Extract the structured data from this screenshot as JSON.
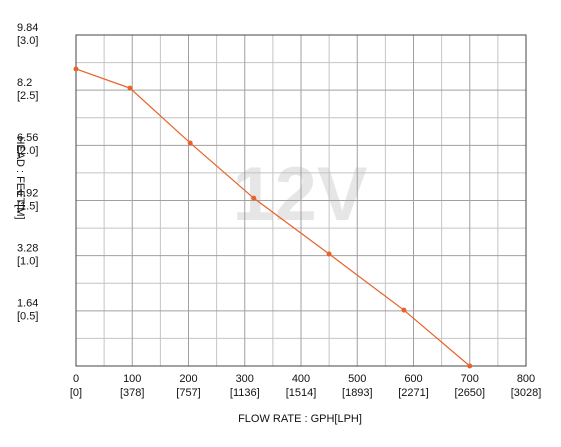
{
  "chart_data": {
    "type": "line",
    "watermark": "12V",
    "x_label": "FLOW RATE : GPH[LPH]",
    "y_label": "HEAD : FEET[M]",
    "x": [
      0,
      96,
      203,
      316,
      450,
      583,
      700
    ],
    "series": [
      {
        "name": "12V",
        "color": "#e8622a",
        "values": [
          8.83,
          8.26,
          6.63,
          4.99,
          3.33,
          1.66,
          0
        ]
      }
    ],
    "xlim": [
      0,
      800
    ],
    "xticks": [
      0,
      100,
      200,
      300,
      400,
      500,
      600,
      700,
      800
    ],
    "x2lim": [
      0,
      3028
    ],
    "x2ticks": [
      {
        "value": 0,
        "label": "[0]"
      },
      {
        "value": 378,
        "label": "[378]"
      },
      {
        "value": 757,
        "label": "[757]"
      },
      {
        "value": 1136,
        "label": "[1136]"
      },
      {
        "value": 1514,
        "label": "[1514]"
      },
      {
        "value": 1893,
        "label": "[1893]"
      },
      {
        "value": 2271,
        "label": "[2271]"
      },
      {
        "value": 2650,
        "label": "[2650]"
      },
      {
        "value": 3028,
        "label": "[3028]"
      }
    ],
    "ylim": [
      0,
      9.84
    ],
    "yticks": [
      1.64,
      3.28,
      4.92,
      6.56,
      8.2,
      9.84
    ],
    "y2lim": [
      0,
      3.0
    ],
    "y2ticks": [
      {
        "value": 0.5,
        "label": "[0.5]"
      },
      {
        "value": 1.0,
        "label": "[1.0]"
      },
      {
        "value": 1.5,
        "label": "[1.5]"
      },
      {
        "value": 2.0,
        "label": "[2.0]"
      },
      {
        "value": 2.5,
        "label": "[2.5]"
      },
      {
        "value": 3.0,
        "label": "[3.0]"
      }
    ],
    "grid": true
  }
}
